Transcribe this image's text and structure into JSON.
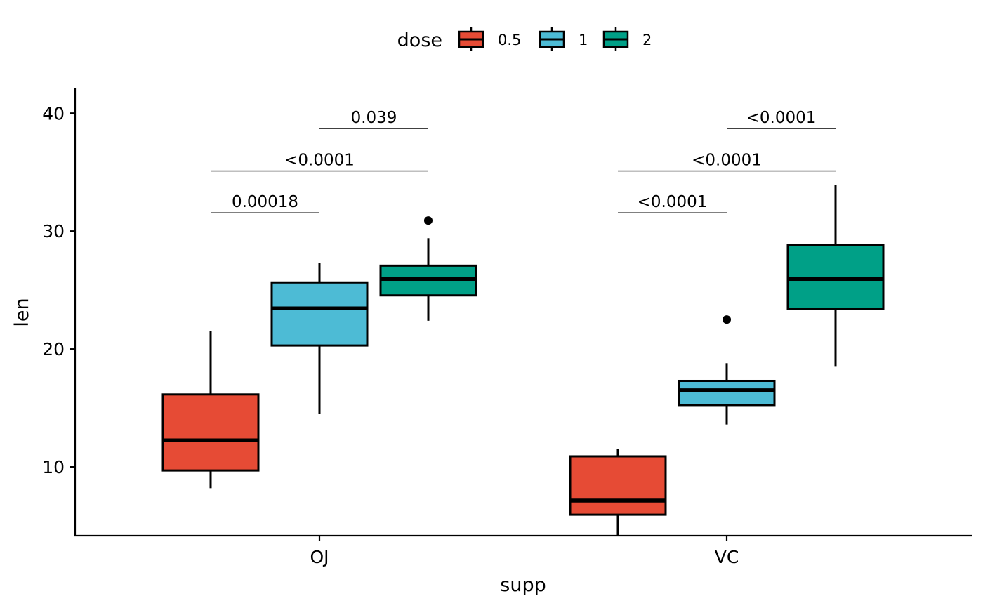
{
  "chart_data": {
    "type": "boxplot",
    "title": "",
    "xlabel": "supp",
    "ylabel": "len",
    "categories": [
      "OJ",
      "VC"
    ],
    "ylim": [
      4.17,
      42.1
    ],
    "yticks": [
      10,
      20,
      30,
      40
    ],
    "grid": false,
    "legend": {
      "title": "dose",
      "position": "top",
      "entries": [
        {
          "label": "0.5",
          "color": "#E64B35"
        },
        {
          "label": "1",
          "color": "#4DBBD5"
        },
        {
          "label": "2",
          "color": "#00A087"
        }
      ]
    },
    "series": [
      {
        "name": "0.5",
        "color": "#E64B35",
        "boxes": [
          {
            "category": "OJ",
            "whisker_low": 8.2,
            "q1": 9.7,
            "median": 12.25,
            "q3": 16.15,
            "whisker_high": 21.5,
            "outliers": []
          },
          {
            "category": "VC",
            "whisker_low": 4.2,
            "q1": 5.95,
            "median": 7.15,
            "q3": 10.9,
            "whisker_high": 11.5,
            "outliers": []
          }
        ]
      },
      {
        "name": "1",
        "color": "#4DBBD5",
        "boxes": [
          {
            "category": "OJ",
            "whisker_low": 14.5,
            "q1": 20.3,
            "median": 23.45,
            "q3": 25.65,
            "whisker_high": 27.3,
            "outliers": []
          },
          {
            "category": "VC",
            "whisker_low": 13.6,
            "q1": 15.25,
            "median": 16.5,
            "q3": 17.3,
            "whisker_high": 18.8,
            "outliers": [
              22.5
            ]
          }
        ]
      },
      {
        "name": "2",
        "color": "#00A087",
        "boxes": [
          {
            "category": "OJ",
            "whisker_low": 22.4,
            "q1": 24.55,
            "median": 25.95,
            "q3": 27.075,
            "whisker_high": 29.4,
            "outliers": [
              30.9
            ]
          },
          {
            "category": "VC",
            "whisker_low": 18.5,
            "q1": 23.375,
            "median": 25.95,
            "q3": 28.8,
            "whisker_high": 33.9,
            "outliers": []
          }
        ]
      }
    ],
    "annotations": [
      {
        "category": "OJ",
        "from": "0.5",
        "to": "1",
        "label": "0.00018",
        "y": 31.55
      },
      {
        "category": "OJ",
        "from": "0.5",
        "to": "2",
        "label": "<0.0001",
        "y": 35.1
      },
      {
        "category": "OJ",
        "from": "1",
        "to": "2",
        "label": "0.039",
        "y": 38.7
      },
      {
        "category": "VC",
        "from": "0.5",
        "to": "1",
        "label": "<0.0001",
        "y": 31.55
      },
      {
        "category": "VC",
        "from": "0.5",
        "to": "2",
        "label": "<0.0001",
        "y": 35.1
      },
      {
        "category": "VC",
        "from": "1",
        "to": "2",
        "label": "<0.0001",
        "y": 38.7
      }
    ]
  }
}
